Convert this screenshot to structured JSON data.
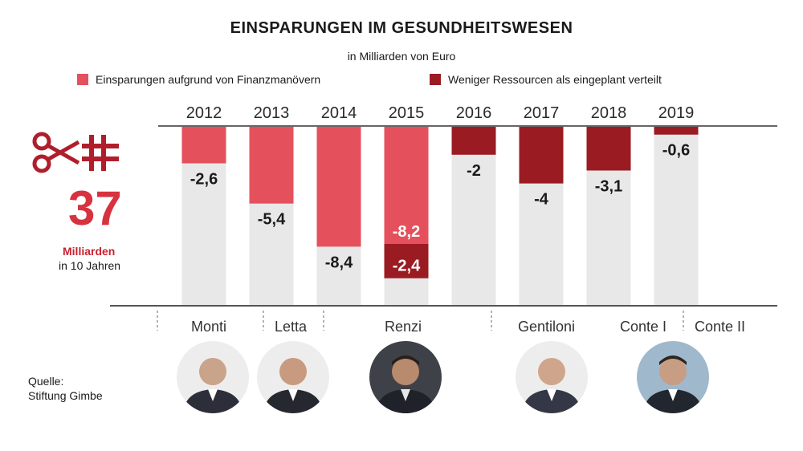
{
  "title": "EINSPARUNGEN IM GESUNDHEITSWESEN",
  "subtitle": "in Milliarden von Euro",
  "legend": [
    {
      "label": "Einsparungen aufgrund von Finanzmanövern",
      "color": "#e5505d"
    },
    {
      "label": "Weniger Ressourcen als eingeplant verteilt",
      "color": "#9b1b22"
    }
  ],
  "side": {
    "total": "37",
    "unit": "Milliarden",
    "period": "in 10 Jahren"
  },
  "source": {
    "label": "Quelle:",
    "name": "Stiftung Gimbe"
  },
  "persons": [
    {
      "name": "Monti"
    },
    {
      "name": "Letta"
    },
    {
      "name": "Renzi"
    },
    {
      "name": "Gentiloni"
    },
    {
      "name": "Conte I"
    },
    {
      "name": "Conte II"
    }
  ],
  "chart_data": {
    "type": "bar",
    "stacked": true,
    "categories": [
      "2012",
      "2013",
      "2014",
      "2015",
      "2016",
      "2017",
      "2018",
      "2019"
    ],
    "series": [
      {
        "name": "Einsparungen aufgrund von Finanzmanövern",
        "color": "#e5505d",
        "values": [
          -2.6,
          -5.4,
          -8.4,
          -8.2,
          0,
          0,
          0,
          0
        ]
      },
      {
        "name": "Weniger Ressourcen als eingeplant verteilt",
        "color": "#9b1b22",
        "values": [
          0,
          0,
          0,
          -2.4,
          -2,
          -4,
          -3.1,
          -0.6
        ]
      }
    ],
    "data_labels": [
      [
        {
          "text": "-2,6"
        }
      ],
      [
        {
          "text": "-5,4"
        }
      ],
      [
        {
          "text": "-8,4"
        }
      ],
      [
        {
          "text": "-8,2"
        },
        {
          "text": "-2,4"
        }
      ],
      [
        {
          "text": "-2"
        }
      ],
      [
        {
          "text": "-4"
        }
      ],
      [
        {
          "text": "-3,1"
        }
      ],
      [
        {
          "text": "-0,6"
        }
      ]
    ],
    "ylim": [
      -15,
      0
    ]
  }
}
